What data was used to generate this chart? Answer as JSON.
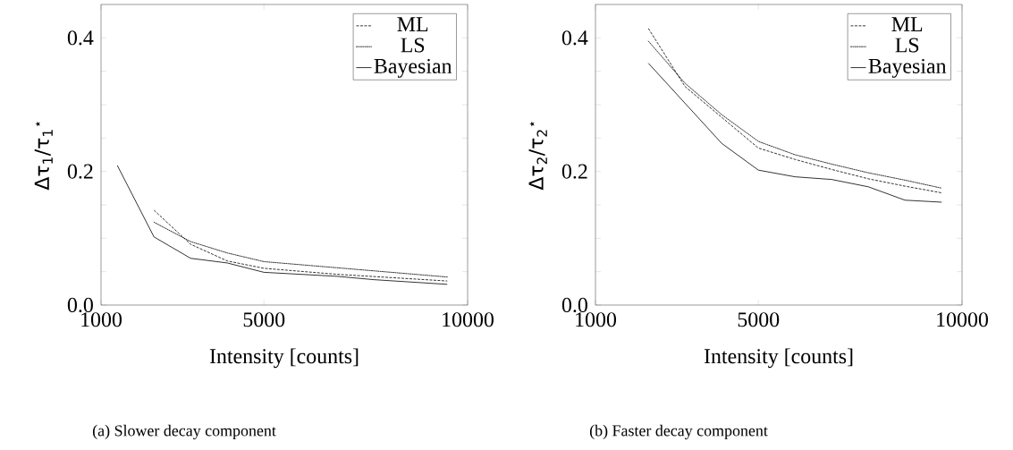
{
  "chart_data": [
    {
      "type": "line",
      "xlabel": "Intensity [counts]",
      "ylabel": "Δτ$_{1}$/τ$_{1}$$^{⋆}$",
      "series": [
        {
          "name": "ML",
          "color": "#000000",
          "line_style": "dashed",
          "x": [
            2300,
            3200,
            4100,
            5000,
            6800,
            9500
          ],
          "values": [
            0.142,
            0.091,
            0.066,
            0.055,
            0.046,
            0.036
          ]
        },
        {
          "name": "LS",
          "color": "#000000",
          "line_style": "dotted",
          "x": [
            2300,
            3200,
            4100,
            5000,
            9500
          ],
          "values": [
            0.124,
            0.095,
            0.078,
            0.065,
            0.042
          ]
        },
        {
          "name": "Bayesian",
          "color": "#000000",
          "line_style": "solid",
          "x": [
            1400,
            2300,
            3200,
            4100,
            5000,
            6800,
            7700,
            9500
          ],
          "values": [
            0.209,
            0.102,
            0.07,
            0.063,
            0.049,
            0.043,
            0.038,
            0.031
          ]
        }
      ],
      "xlim": [
        1000,
        10000
      ],
      "ylim": [
        0,
        0.45
      ],
      "xticks": [
        1000,
        5000,
        10000
      ],
      "yticks": [
        {
          "value": 0,
          "label": "0.0"
        },
        {
          "value": 0.05,
          "label": null
        },
        {
          "value": 0.1,
          "label": null
        },
        {
          "value": 0.15,
          "label": null
        },
        {
          "value": 0.2,
          "label": "0.2"
        },
        {
          "value": 0.25,
          "label": null
        },
        {
          "value": 0.3,
          "label": null
        },
        {
          "value": 0.35,
          "label": null
        },
        {
          "value": 0.4,
          "label": "0.4"
        }
      ],
      "legend": "top right",
      "grid": false,
      "marker": "none",
      "annotations": [
        "(a) Slower decay component"
      ]
    },
    {
      "type": "line",
      "xlabel": "Intensity [counts]",
      "ylabel": "Δτ$_{2}$/τ$_{2}$$^{⋆}$",
      "series": [
        {
          "name": "ML",
          "color": "#000000",
          "line_style": "dashed",
          "x": [
            2300,
            3200,
            4100,
            5000,
            5900,
            6800,
            7700,
            8600,
            9500
          ],
          "values": [
            0.414,
            0.327,
            0.281,
            0.235,
            0.218,
            0.203,
            0.189,
            0.178,
            0.168
          ]
        },
        {
          "name": "LS",
          "color": "#000000",
          "line_style": "dotted",
          "x": [
            2300,
            3200,
            4100,
            5000,
            5900,
            6800,
            7700,
            8600,
            9500
          ],
          "values": [
            0.395,
            0.332,
            0.285,
            0.245,
            0.225,
            0.211,
            0.198,
            0.187,
            0.175
          ]
        },
        {
          "name": "Bayesian",
          "color": "#000000",
          "line_style": "solid",
          "x": [
            2300,
            4100,
            5000,
            5900,
            6800,
            7700,
            8600,
            9500
          ],
          "values": [
            0.362,
            0.242,
            0.202,
            0.192,
            0.188,
            0.177,
            0.157,
            0.154
          ]
        }
      ],
      "xlim": [
        1000,
        10000
      ],
      "ylim": [
        0,
        0.45
      ],
      "xticks": [
        1000,
        5000,
        10000
      ],
      "yticks": [
        {
          "value": 0,
          "label": "0.0"
        },
        {
          "value": 0.05,
          "label": null
        },
        {
          "value": 0.1,
          "label": null
        },
        {
          "value": 0.15,
          "label": null
        },
        {
          "value": 0.2,
          "label": "0.2"
        },
        {
          "value": 0.25,
          "label": null
        },
        {
          "value": 0.3,
          "label": null
        },
        {
          "value": 0.35,
          "label": null
        },
        {
          "value": 0.4,
          "label": "0.4"
        }
      ],
      "legend": "top right",
      "grid": false,
      "marker": "none",
      "annotations": [
        "(b) Faster decay component"
      ]
    }
  ]
}
